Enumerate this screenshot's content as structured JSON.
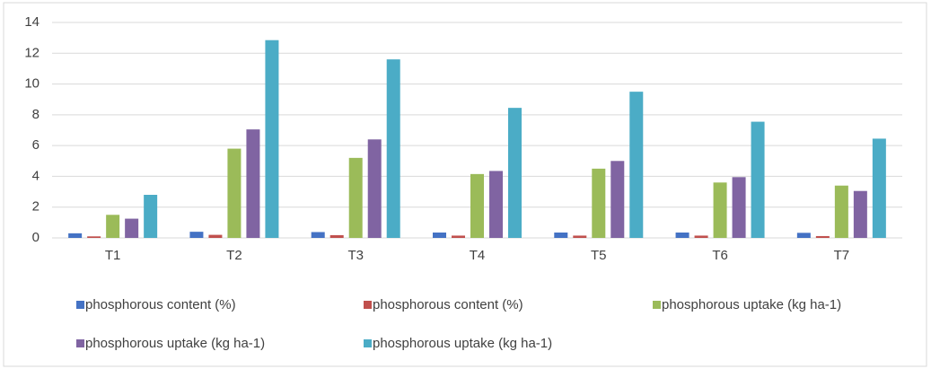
{
  "chart_data": {
    "type": "bar",
    "categories": [
      "T1",
      "T2",
      "T3",
      "T4",
      "T5",
      "T6",
      "T7"
    ],
    "series": [
      {
        "name": "phosphorous content (%)",
        "color": "#4472c4",
        "values": [
          0.3,
          0.4,
          0.38,
          0.35,
          0.35,
          0.35,
          0.33
        ]
      },
      {
        "name": "phosphorous content (%)",
        "color": "#c0504d",
        "values": [
          0.1,
          0.2,
          0.18,
          0.15,
          0.15,
          0.15,
          0.12
        ]
      },
      {
        "name": "phosphorous uptake (kg ha-1)",
        "color": "#9bbb59",
        "values": [
          1.5,
          5.8,
          5.2,
          4.15,
          4.5,
          3.6,
          3.4
        ]
      },
      {
        "name": "phosphorous uptake (kg ha-1)",
        "color": "#8064a2",
        "values": [
          1.25,
          7.05,
          6.4,
          4.35,
          5.0,
          3.95,
          3.05
        ]
      },
      {
        "name": "phosphorous uptake (kg ha-1)",
        "color": "#4bacc6",
        "values": [
          2.8,
          12.85,
          11.6,
          8.45,
          9.5,
          7.55,
          6.45
        ]
      }
    ],
    "ylim": [
      0,
      14
    ],
    "yticks": [
      0,
      2,
      4,
      6,
      8,
      10,
      12,
      14
    ],
    "grid": true,
    "legend": "bottom"
  }
}
